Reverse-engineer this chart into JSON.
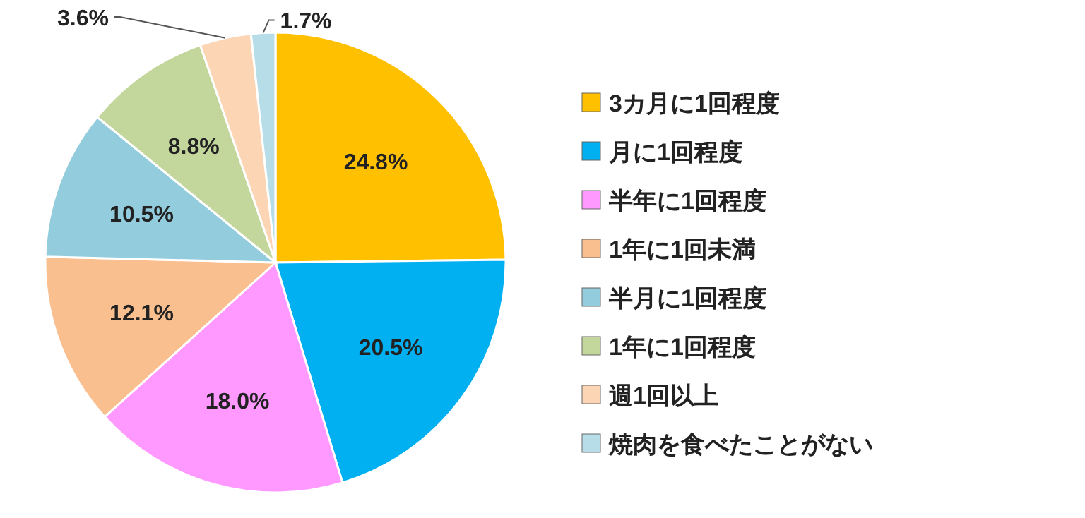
{
  "chart_data": {
    "type": "pie",
    "legend": "right",
    "categories": [
      "3カ月に1回程度",
      "月に1回程度",
      "半年に1回程度",
      "1年に1回未満",
      "半月に1回程度",
      "1年に1回程度",
      "週1回以上",
      "焼肉を食べたことがない"
    ],
    "values": [
      24.8,
      20.5,
      18.0,
      12.1,
      10.5,
      8.8,
      3.6,
      1.7
    ],
    "value_labels": [
      "24.8%",
      "20.5%",
      "18.0%",
      "12.1%",
      "10.5%",
      "8.8%",
      "3.6%",
      "1.7%"
    ],
    "colors": [
      "#ffc000",
      "#00b0f0",
      "#ff99ff",
      "#fabf8f",
      "#93cddd",
      "#c3d69b",
      "#fcd5b5",
      "#b7dee8"
    ]
  }
}
